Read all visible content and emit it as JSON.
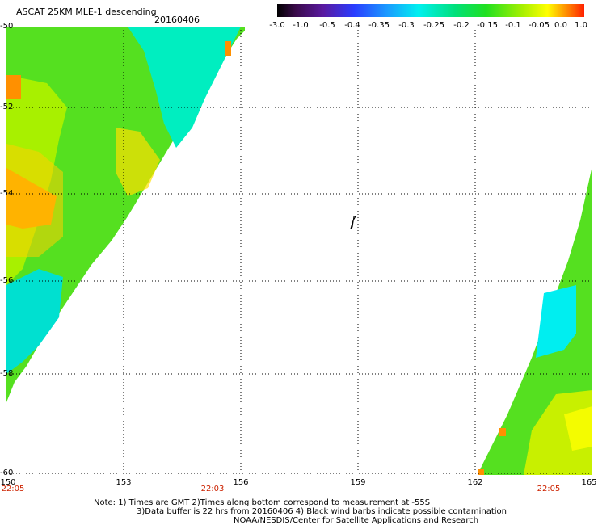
{
  "header": {
    "title": "ASCAT 25KM MLE-1 descending",
    "date": "20160406"
  },
  "colorbar": {
    "ticks": [
      "-3.0",
      "-1.0",
      "-0.5",
      "-0.4",
      "-0.35",
      "-0.3",
      "-0.25",
      "-0.2",
      "-0.15",
      "-0.1",
      "-0.05",
      "0.0",
      "1.0"
    ],
    "colors": [
      "#000000",
      "#5a1aa0",
      "#2a3cff",
      "#1a9cff",
      "#00f0f0",
      "#00e07a",
      "#20e020",
      "#a8f000",
      "#ffff00",
      "#ff9000",
      "#ff2000"
    ]
  },
  "axes": {
    "lat_labels": [
      "-50",
      "-52",
      "-54",
      "-56",
      "-58",
      "-60"
    ],
    "lon_labels": [
      "150",
      "153",
      "156",
      "159",
      "162",
      "165"
    ],
    "times": [
      "22:05",
      "22:03",
      "22:05"
    ]
  },
  "notes": {
    "line1": "Note: 1) Times are GMT 2)Times along bottom correspond to measurement at -55S",
    "line2": "3)Data buffer is 22 hrs from 20160406 4) Black wind barbs indicate possible contamination",
    "line3": "NOAA/NESDIS/Center for Satellite Applications and Research"
  }
}
